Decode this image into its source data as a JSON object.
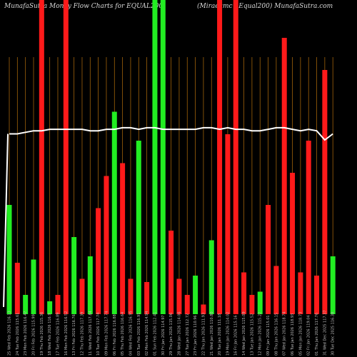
{
  "chart_title_left": "MunafaSutra  Money Flow  Charts for EQUAL200",
  "chart_title_right": "(Miraeamc - Equal200) MunafaSutra.com",
  "colors": {
    "background": "#000000",
    "up_bar": "#22ee22",
    "down_bar": "#ff1a1a",
    "gridline": "#a0620a",
    "line": "#ffffff"
  },
  "chart_data": {
    "type": "bar",
    "bar_scale_max": 100,
    "line_scale_max": 100,
    "categories": [
      "25 Wed Feb 2026 116.13",
      "24 Tue Feb 2026 115.61",
      "23 Mon Feb 2026 116.47",
      "20 Fri Feb 2026 115.99",
      "19 Thu Feb 2026 115.36",
      "18 Wed Feb 2026 116.9",
      "17 Tue Feb 2026 116.89",
      "16 Mon Feb 2026 116.52",
      "13 Fri Feb 2026 116.76",
      "12 Thu Feb 2026 117.39",
      "11 Wed Feb 2026 117.84",
      "10 Tue Feb 2026 117.74",
      "09 Mon Feb 2026 117.74",
      "06 Fri Feb 2026 116.88",
      "05 Thu Feb 2026 116.64",
      "04 Wed Feb 2026 116.95",
      "03 Tue Feb 2026 116.91",
      "02 Mon Feb 2026 114.94",
      "01 Sun Feb 2026 112.41",
      "30 Fri Jan 2026 114.97",
      "29 Thu Jan 2026 115.06",
      "28 Wed Jan 2026 114.06",
      "27 Tue Jan 2026 112.72",
      "23 Fri Jan 2026 110.96",
      "22 Thu Jan 2026 111.93",
      "21 Wed Jan 2026 110.80",
      "20 Tue Jan 2026 111.18",
      "19 Mon Jan 2026 114.02",
      "16 Fri Jan 2026 115.16",
      "14 Wed Jan 2026 115.09",
      "13 Tue Jan 2026 115.52",
      "12 Mon Jan 2026 115.22",
      "09 Fri Jan 2026 115.01",
      "08 Thu Jan 2026 116.15",
      "07 Wed Jan 2026 118.74",
      "06 Tue Jan 2026 118.93",
      "05 Mon Jan 2026 118.73",
      "02 Fri Jan 2026 119.04",
      "01 Thu Jan 2026 117.76",
      "31 Wed Dec 2025 117.37",
      "30 Tue Dec 2025 116.38"
    ],
    "bar_colors": [
      "G",
      "R",
      "G",
      "G",
      "R",
      "G",
      "R",
      "R",
      "G",
      "R",
      "G",
      "R",
      "R",
      "G",
      "R",
      "R",
      "G",
      "R",
      "G",
      "G",
      "R",
      "R",
      "R",
      "G",
      "R",
      "G",
      "R",
      "R",
      "R",
      "R",
      "R",
      "G",
      "R",
      "R",
      "R",
      "R",
      "R",
      "R",
      "R",
      "R",
      "G"
    ],
    "values": [
      34,
      16,
      6,
      17,
      100,
      4,
      6,
      100,
      24,
      11,
      18,
      33,
      43,
      63,
      47,
      11,
      54,
      10,
      100,
      100,
      26,
      11,
      6,
      12,
      3,
      23,
      100,
      56,
      100,
      13,
      6,
      7,
      34,
      15,
      86,
      44,
      13,
      54,
      12,
      76,
      18
    ],
    "line_values": [
      59,
      59,
      59.5,
      60,
      60,
      60.5,
      60.5,
      60.5,
      60.5,
      60.5,
      60,
      60,
      60.5,
      60.5,
      61,
      61,
      60.5,
      61,
      61,
      60.5,
      60.5,
      60.5,
      60.5,
      60.5,
      61,
      61,
      60.5,
      61,
      60.5,
      60.5,
      60,
      60,
      60.5,
      61,
      61,
      60.5,
      60,
      60.5,
      60,
      57,
      59
    ],
    "ylim": [
      0,
      100
    ]
  }
}
